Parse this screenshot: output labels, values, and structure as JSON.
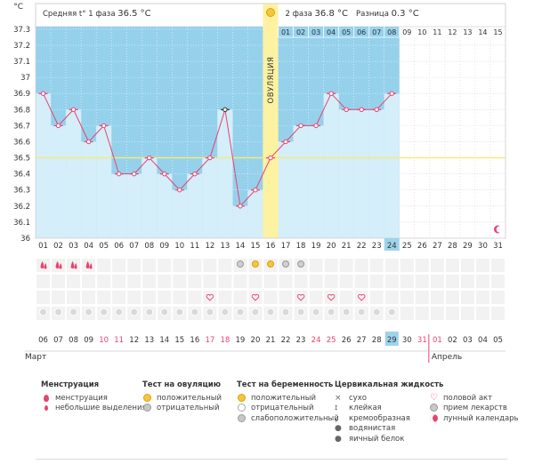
{
  "chart_data": {
    "type": "line",
    "y_unit": "°C",
    "ylim": [
      36.0,
      37.3
    ],
    "y_ticks": [
      "37.3",
      "37.2",
      "37.1",
      "37",
      "36.9",
      "36.8",
      "36.7",
      "36.6",
      "36.5",
      "36.4",
      "36.3",
      "36.2",
      "36.1",
      "36"
    ],
    "cycle_days": [
      "01",
      "02",
      "03",
      "04",
      "05",
      "06",
      "07",
      "08",
      "09",
      "10",
      "11",
      "12",
      "13",
      "14",
      "15",
      "16",
      "17",
      "18",
      "19",
      "20",
      "21",
      "22",
      "23",
      "24",
      "25",
      "26",
      "27",
      "28",
      "29",
      "30",
      "31"
    ],
    "top_day_labels": [
      "01",
      "02",
      "03",
      "04",
      "05",
      "06",
      "07",
      "08",
      "09",
      "10",
      "11",
      "12",
      "13",
      "14",
      "15"
    ],
    "temperatures": [
      36.9,
      36.7,
      36.8,
      36.6,
      36.7,
      36.4,
      36.4,
      36.5,
      36.4,
      36.3,
      36.4,
      36.5,
      36.8,
      36.2,
      36.3,
      36.5,
      36.6,
      36.7,
      36.7,
      36.9,
      36.8,
      36.8,
      36.8,
      36.9
    ],
    "coverline": 36.5,
    "ovulation_day": "16",
    "today_cycle_day": "24",
    "phase1_text": "Средняя t° 1 фаза",
    "phase1_value": "36.5 °C",
    "phase2_text": "2 фаза",
    "phase2_value": "36.8 °C",
    "diff_text": "Разница",
    "diff_value": "0.3 °C",
    "ovulation_label": "ОВУЛЯЦИЯ",
    "calendar_dates": [
      "06",
      "07",
      "08",
      "09",
      "10",
      "11",
      "12",
      "13",
      "14",
      "15",
      "16",
      "17",
      "18",
      "19",
      "20",
      "21",
      "22",
      "23",
      "24",
      "25",
      "26",
      "27",
      "28",
      "29",
      "30",
      "31",
      "01",
      "02",
      "03",
      "04",
      "05"
    ],
    "weekend_date_indexes": [
      4,
      5,
      11,
      12,
      18,
      19,
      25,
      26
    ],
    "today_date_index": 23,
    "month_start": "Март",
    "month_next": "Апрель",
    "month_next_index": 26,
    "menstruation_days": [
      1,
      2,
      3,
      4
    ],
    "ovulation_tests": {
      "negative": [
        14,
        17,
        18
      ],
      "positive": [
        15,
        16
      ]
    },
    "intercourse_days": [
      12,
      15,
      18,
      20,
      22
    ],
    "medication_days": [
      1,
      2,
      3,
      4,
      5,
      6,
      7,
      8,
      9,
      10,
      11,
      12,
      13,
      14,
      15,
      16,
      17,
      18,
      19,
      20,
      21,
      22,
      23,
      24
    ]
  },
  "legend": {
    "menstruation": {
      "title": "Менструация",
      "items": [
        "менструация",
        "небольшие выделения"
      ]
    },
    "ovulation_test": {
      "title": "Тест на овуляцию",
      "items": [
        "положительный",
        "отрицательный"
      ]
    },
    "pregnancy_test": {
      "title": "Тест на беременность",
      "items": [
        "положительный",
        "отрицательный",
        "слабоположительный"
      ]
    },
    "cervical": {
      "title": "Цервикальная жидкость",
      "items": [
        "сухо",
        "клейкая",
        "кремообразная",
        "водянистая",
        "яичный белок"
      ]
    },
    "other": {
      "items": [
        "половой акт",
        "прием лекарств",
        "лунный календарь"
      ]
    }
  },
  "colors": {
    "phase_bg": "#96d1ec",
    "bar_fill": "#d4eefa",
    "line": "#e8436f",
    "coverline": "#f3ea7e",
    "ovulation": "#fdf2a1",
    "today": "#9ed3ec"
  }
}
